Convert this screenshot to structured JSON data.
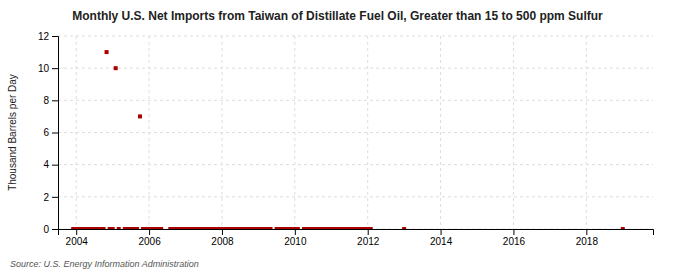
{
  "chart_data": {
    "type": "scatter",
    "title": "Monthly U.S. Net Imports from Taiwan of Distillate Fuel Oil, Greater than 15 to 500 ppm Sulfur",
    "ylabel": "Thousand Barrels per Day",
    "annotations": [
      "Source: U.S. Energy Information Administration"
    ],
    "color": "#aa0000",
    "marker": "square",
    "grid": true,
    "xlim": [
      2003.5,
      2019.83
    ],
    "xticks": [
      2004,
      2006,
      2008,
      2010,
      2012,
      2014,
      2016,
      2018
    ],
    "ylim": [
      0,
      12
    ],
    "yticks": [
      0,
      2,
      4,
      6,
      8,
      10,
      12
    ],
    "x": [
      2004.833,
      2005.083,
      2005.75,
      2003.917,
      2004.0,
      2004.083,
      2004.167,
      2004.25,
      2004.333,
      2004.417,
      2004.5,
      2004.583,
      2004.667,
      2004.75,
      2004.917,
      2005.0,
      2005.167,
      2005.333,
      2005.417,
      2005.5,
      2005.583,
      2005.667,
      2005.833,
      2005.917,
      2006.0,
      2006.083,
      2006.167,
      2006.25,
      2006.333,
      2006.583,
      2006.667,
      2006.75,
      2006.833,
      2006.917,
      2007.0,
      2007.083,
      2007.167,
      2007.25,
      2007.333,
      2007.417,
      2007.5,
      2007.583,
      2007.667,
      2007.75,
      2007.833,
      2007.917,
      2008.0,
      2008.083,
      2008.167,
      2008.25,
      2008.333,
      2008.417,
      2008.5,
      2008.583,
      2008.667,
      2008.75,
      2008.833,
      2008.917,
      2009.0,
      2009.083,
      2009.167,
      2009.25,
      2009.333,
      2009.5,
      2009.583,
      2009.667,
      2009.75,
      2009.833,
      2009.917,
      2010.0,
      2010.083,
      2010.25,
      2010.333,
      2010.417,
      2010.5,
      2010.583,
      2010.667,
      2010.75,
      2010.833,
      2010.917,
      2011.0,
      2011.083,
      2011.167,
      2011.25,
      2011.333,
      2011.417,
      2011.5,
      2011.583,
      2011.667,
      2011.75,
      2011.833,
      2011.917,
      2012.0,
      2012.083,
      2013.0,
      2019.0
    ],
    "values": [
      11.0,
      10.0,
      7.0,
      0.0,
      0.0,
      0.0,
      0.0,
      0.0,
      0.0,
      0.0,
      0.0,
      0.0,
      0.0,
      0.0,
      0.0,
      0.0,
      0.0,
      0.0,
      0.0,
      0.0,
      0.0,
      0.0,
      0.0,
      0.0,
      0.0,
      0.0,
      0.0,
      0.0,
      0.0,
      0.0,
      0.0,
      0.0,
      0.0,
      0.0,
      0.0,
      0.0,
      0.0,
      0.0,
      0.0,
      0.0,
      0.0,
      0.0,
      0.0,
      0.0,
      0.0,
      0.0,
      0.0,
      0.0,
      0.0,
      0.0,
      0.0,
      0.0,
      0.0,
      0.0,
      0.0,
      0.0,
      0.0,
      0.0,
      0.0,
      0.0,
      0.0,
      0.0,
      0.0,
      0.0,
      0.0,
      0.0,
      0.0,
      0.0,
      0.0,
      0.0,
      0.0,
      0.0,
      0.0,
      0.0,
      0.0,
      0.0,
      0.0,
      0.0,
      0.0,
      0.0,
      0.0,
      0.0,
      0.0,
      0.0,
      0.0,
      0.0,
      0.0,
      0.0,
      0.0,
      0.0,
      0.0,
      0.0,
      0.0,
      0.0,
      0.0,
      0.0
    ]
  }
}
